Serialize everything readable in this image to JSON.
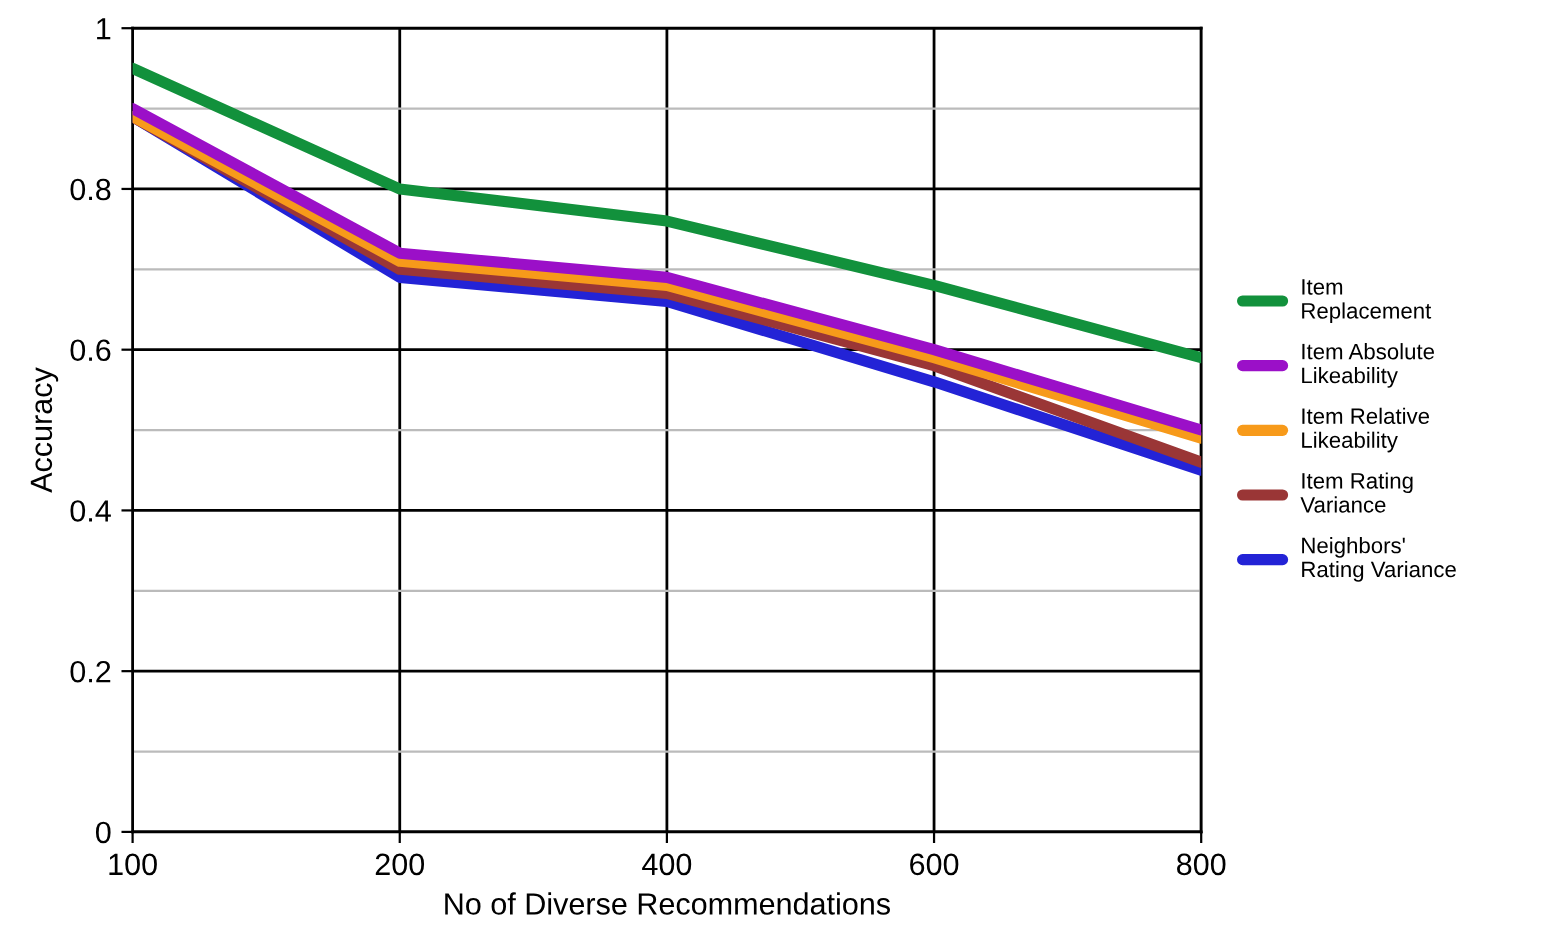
{
  "chart_data": {
    "type": "line",
    "xlabel": "No of Diverse Recommendations",
    "ylabel": "Accuracy",
    "categories": [
      "100",
      "200",
      "400",
      "600",
      "800"
    ],
    "ylim": [
      0,
      1
    ],
    "yticks": [
      0,
      0.2,
      0.4,
      0.6,
      0.8,
      1
    ],
    "grid": true,
    "legend": "right",
    "marker": "none",
    "line_style": "solid",
    "series": [
      {
        "name": "Item\nReplacement",
        "color": "#12913c",
        "values": [
          0.95,
          0.8,
          0.76,
          0.68,
          0.59
        ]
      },
      {
        "name": "Item Absolute\nLikeability",
        "color": "#9b10c8",
        "values": [
          0.9,
          0.72,
          0.69,
          0.6,
          0.5
        ]
      },
      {
        "name": "Item Relative\nLikeability",
        "color": "#f79a1a",
        "values": [
          0.89,
          0.71,
          0.68,
          0.59,
          0.49
        ]
      },
      {
        "name": "Item Rating\nVariance",
        "color": "#9a3636",
        "values": [
          0.89,
          0.7,
          0.67,
          0.58,
          0.46
        ]
      },
      {
        "name": "Neighbors'\nRating Variance",
        "color": "#2323d6",
        "values": [
          0.89,
          0.69,
          0.66,
          0.56,
          0.45
        ]
      }
    ]
  }
}
